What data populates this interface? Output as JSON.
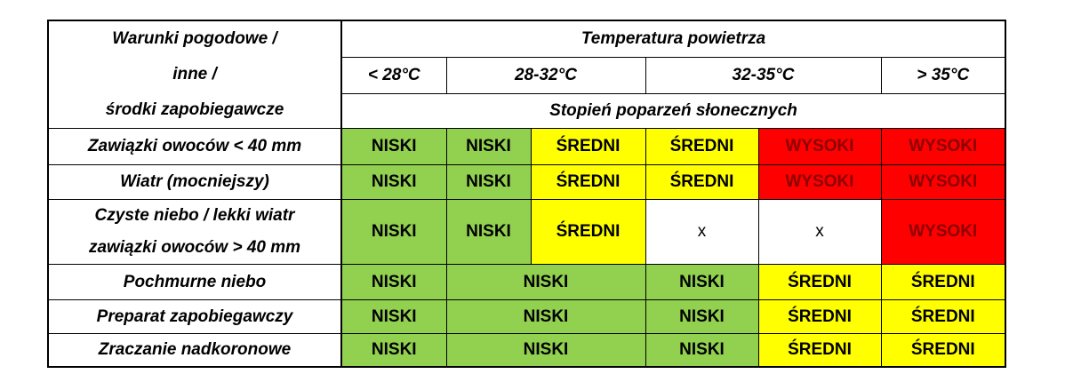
{
  "table": {
    "label_lines": [
      "Warunki pogodowe /",
      "inne /",
      "środki zapobiegawcze"
    ],
    "title": "Temperatura powietrza",
    "temps": [
      {
        "text": "< 28°C",
        "colspan": 1
      },
      {
        "text": "28-32°C",
        "colspan": 2
      },
      {
        "text": "32-35°C",
        "colspan": 2
      },
      {
        "text": "> 35°C",
        "colspan": 1
      }
    ],
    "subtitle": "Stopień poparzeń słonecznych",
    "rows": [
      {
        "label": [
          "Zawiązki owoców  < 40 mm"
        ],
        "cells": [
          {
            "text": "NISKI",
            "colspan": 1,
            "fill": "#92d050",
            "text_color": "#000000"
          },
          {
            "text": "NISKI",
            "colspan": 1,
            "fill": "#92d050",
            "text_color": "#000000"
          },
          {
            "text": "ŚREDNI",
            "colspan": 1,
            "fill": "#ffff00",
            "text_color": "#000000"
          },
          {
            "text": "ŚREDNI",
            "colspan": 1,
            "fill": "#ffff00",
            "text_color": "#000000"
          },
          {
            "text": "WYSOKI",
            "colspan": 1,
            "fill": "#ff0000",
            "text_color": "#8b0000"
          },
          {
            "text": "WYSOKI",
            "colspan": 1,
            "fill": "#ff0000",
            "text_color": "#8b0000"
          }
        ]
      },
      {
        "label": [
          "Wiatr (mocniejszy)"
        ],
        "cells": [
          {
            "text": "NISKI",
            "colspan": 1,
            "fill": "#92d050",
            "text_color": "#000000"
          },
          {
            "text": "NISKI",
            "colspan": 1,
            "fill": "#92d050",
            "text_color": "#000000"
          },
          {
            "text": "ŚREDNI",
            "colspan": 1,
            "fill": "#ffff00",
            "text_color": "#000000"
          },
          {
            "text": "ŚREDNI",
            "colspan": 1,
            "fill": "#ffff00",
            "text_color": "#000000"
          },
          {
            "text": "WYSOKI",
            "colspan": 1,
            "fill": "#ff0000",
            "text_color": "#8b0000"
          },
          {
            "text": "WYSOKI",
            "colspan": 1,
            "fill": "#ff0000",
            "text_color": "#8b0000"
          }
        ]
      },
      {
        "label": [
          "Czyste niebo / lekki wiatr",
          "zawiązki owoców  > 40 mm"
        ],
        "cells": [
          {
            "text": "NISKI",
            "colspan": 1,
            "fill": "#92d050",
            "text_color": "#000000"
          },
          {
            "text": "NISKI",
            "colspan": 1,
            "fill": "#92d050",
            "text_color": "#000000"
          },
          {
            "text": "ŚREDNI",
            "colspan": 1,
            "fill": "#ffff00",
            "text_color": "#000000"
          },
          {
            "text": "x",
            "colspan": 1,
            "fill": "#ffffff",
            "text_color": "#000000"
          },
          {
            "text": "x",
            "colspan": 1,
            "fill": "#ffffff",
            "text_color": "#000000"
          },
          {
            "text": "WYSOKI",
            "colspan": 1,
            "fill": "#ff0000",
            "text_color": "#8b0000"
          }
        ]
      },
      {
        "label": [
          "Pochmurne niebo"
        ],
        "cells": [
          {
            "text": "NISKI",
            "colspan": 1,
            "fill": "#92d050",
            "text_color": "#000000"
          },
          {
            "text": "NISKI",
            "colspan": 2,
            "fill": "#92d050",
            "text_color": "#000000"
          },
          {
            "text": "NISKI",
            "colspan": 1,
            "fill": "#92d050",
            "text_color": "#000000"
          },
          {
            "text": "ŚREDNI",
            "colspan": 1,
            "fill": "#ffff00",
            "text_color": "#000000"
          },
          {
            "text": "ŚREDNI",
            "colspan": 1,
            "fill": "#ffff00",
            "text_color": "#000000"
          }
        ]
      },
      {
        "label": [
          "Preparat zapobiegawczy"
        ],
        "cells": [
          {
            "text": "NISKI",
            "colspan": 1,
            "fill": "#92d050",
            "text_color": "#000000"
          },
          {
            "text": "NISKI",
            "colspan": 2,
            "fill": "#92d050",
            "text_color": "#000000"
          },
          {
            "text": "NISKI",
            "colspan": 1,
            "fill": "#92d050",
            "text_color": "#000000"
          },
          {
            "text": "ŚREDNI",
            "colspan": 1,
            "fill": "#ffff00",
            "text_color": "#000000"
          },
          {
            "text": "ŚREDNI",
            "colspan": 1,
            "fill": "#ffff00",
            "text_color": "#000000"
          }
        ]
      },
      {
        "label": [
          "Zraczanie nadkoronowe"
        ],
        "cells": [
          {
            "text": "NISKI",
            "colspan": 1,
            "fill": "#92d050",
            "text_color": "#000000"
          },
          {
            "text": "NISKI",
            "colspan": 2,
            "fill": "#92d050",
            "text_color": "#000000"
          },
          {
            "text": "NISKI",
            "colspan": 1,
            "fill": "#92d050",
            "text_color": "#000000"
          },
          {
            "text": "ŚREDNI",
            "colspan": 1,
            "fill": "#ffff00",
            "text_color": "#000000"
          },
          {
            "text": "ŚREDNI",
            "colspan": 1,
            "fill": "#ffff00",
            "text_color": "#000000"
          }
        ]
      }
    ]
  }
}
